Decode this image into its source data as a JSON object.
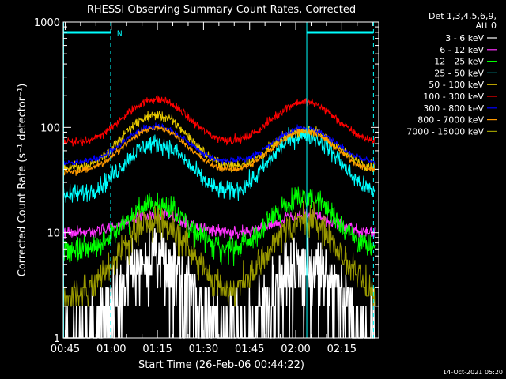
{
  "chart_data": {
    "type": "line",
    "title": "RHESSI Observing Summary Count Rates, Corrected",
    "xlabel": "Start Time (26-Feb-06 00:44:22)",
    "ylabel": "Corrected Count Rate (s⁻¹ detector⁻¹)",
    "x_tick_labels": [
      "00:45",
      "01:00",
      "01:15",
      "01:30",
      "01:45",
      "02:00",
      "02:15"
    ],
    "x_ticks_min": [
      45,
      60,
      75,
      90,
      105,
      120,
      135
    ],
    "xlim_min": [
      44.37,
      147
    ],
    "ylim": [
      1,
      1000
    ],
    "y_scale": "log",
    "y_tick_labels": [
      "1",
      "10",
      "100",
      "1000"
    ],
    "y_ticks": [
      1,
      10,
      100,
      1000
    ],
    "legend_header": [
      "Det 1,3,4,5,6,9,",
      "Att 0"
    ],
    "legend_position": "right",
    "annotation": {
      "text": "N",
      "x_min": 60.8
    },
    "saa_bars_min": [
      [
        44.4,
        59.8
      ],
      [
        123.6,
        145.3
      ]
    ],
    "night_bounds_min": [
      44.5,
      59.8,
      123.6,
      145.3
    ],
    "timestamp": "14-Oct-2021 05:20",
    "series": [
      {
        "name": "3 - 6 keV",
        "color": "#ffffff",
        "base": 0.7,
        "peaks": [
          6,
          5
        ],
        "noise": 0.45,
        "floor": 1
      },
      {
        "name": "6 - 12 keV",
        "color": "#ff33ff",
        "base": 10,
        "peaks": [
          15,
          14.5
        ],
        "noise": 0.06,
        "floor": 1
      },
      {
        "name": "12 - 25 keV",
        "color": "#00ff00",
        "base": 6.5,
        "peaks": [
          19,
          22
        ],
        "noise": 0.12,
        "floor": 1
      },
      {
        "name": "25 - 50 keV",
        "color": "#00ffff",
        "base": 23,
        "peaks": [
          70,
          85
        ],
        "noise": 0.09,
        "floor": 1
      },
      {
        "name": "50 - 100 keV",
        "color": "#e6c800",
        "base": 41,
        "peaks": [
          130,
          95
        ],
        "noise": 0.05,
        "floor": 1
      },
      {
        "name": "100 - 300 keV",
        "color": "#ff0000",
        "base": 72,
        "peaks": [
          185,
          175
        ],
        "noise": 0.04,
        "floor": 1
      },
      {
        "name": "300 - 800 keV",
        "color": "#0000ff",
        "base": 46,
        "peaks": [
          103,
          98
        ],
        "noise": 0.03,
        "floor": 1
      },
      {
        "name": "800 - 7000 keV",
        "color": "#ff9900",
        "base": 38,
        "peaks": [
          98,
          92
        ],
        "noise": 0.03,
        "floor": 1
      },
      {
        "name": "7000 - 15000 keV",
        "color": "#999900",
        "base": 2.5,
        "peaks": [
          13,
          13
        ],
        "noise": 0.15,
        "floor": 1
      }
    ],
    "peak_times_min": [
      74.5,
      122.8
    ],
    "peak_width_min": 8.5
  }
}
